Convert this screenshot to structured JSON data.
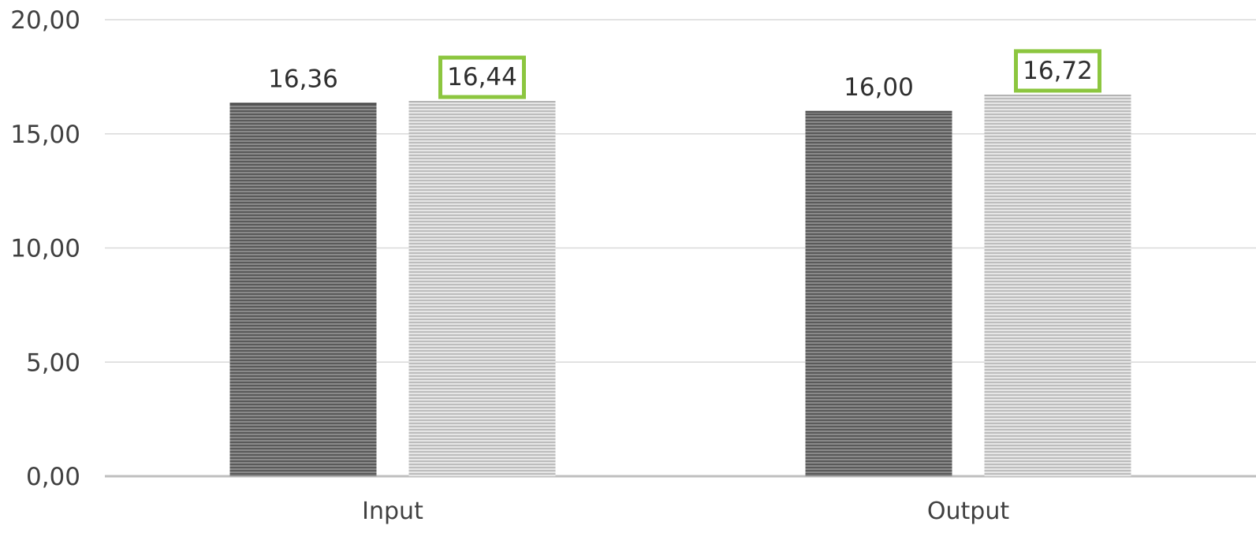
{
  "chart_data": {
    "type": "bar",
    "title": "",
    "xlabel": "",
    "ylabel": "",
    "categories": [
      "Input",
      "Output"
    ],
    "series": [
      {
        "values": [
          16.36,
          16.0
        ],
        "labels": [
          "16,36",
          "16,00"
        ],
        "color": "#5f5f5f",
        "highlighted": [
          false,
          false
        ]
      },
      {
        "values": [
          16.44,
          16.72
        ],
        "labels": [
          "16,44",
          "16,72"
        ],
        "color": "#c9c9c9",
        "highlighted": [
          true,
          true
        ]
      }
    ],
    "ylim": [
      0,
      20
    ],
    "yticks": [
      0,
      5,
      10,
      15,
      20
    ],
    "ytick_labels": [
      "0,00",
      "5,00",
      "10,00",
      "15,00",
      "20,00"
    ],
    "grid": true,
    "legend": "none",
    "highlight_color": "#8cc63f"
  }
}
